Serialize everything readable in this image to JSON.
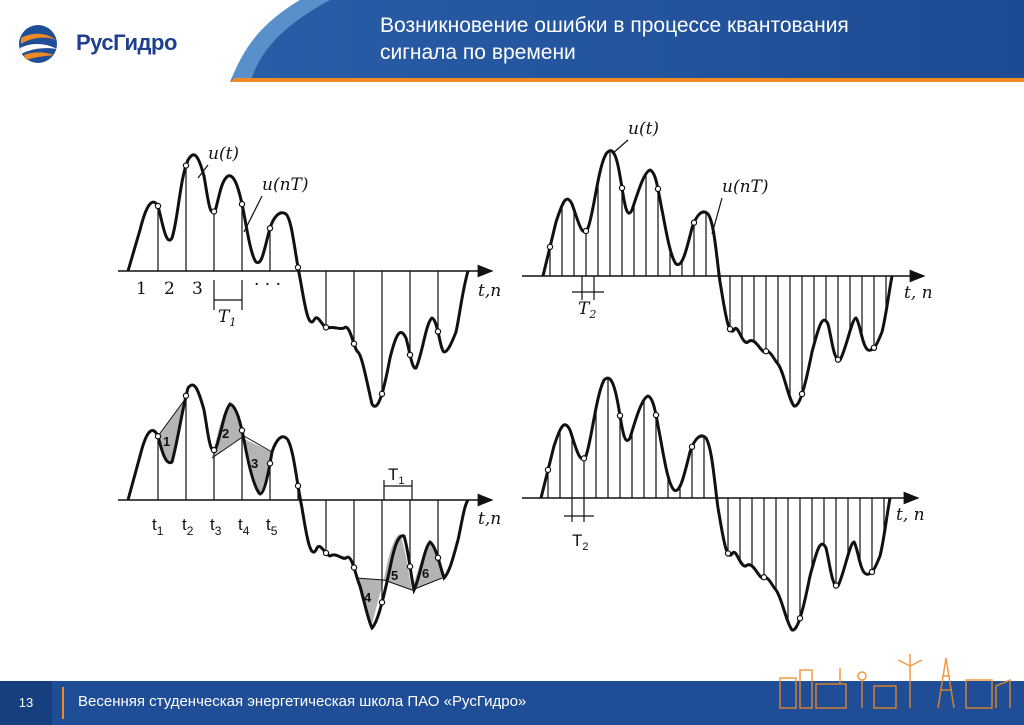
{
  "header": {
    "logo_text": "РусГидро",
    "title_line1": "Возникновение ошибки в процессе квантования",
    "title_line2": "сигнала по времени",
    "colors": {
      "blue_dark": "#1f4e96",
      "blue_light": "#4f8fd0",
      "orange": "#f08a24"
    }
  },
  "panels": {
    "top_left": {
      "curve_label": "u(t)",
      "sample_label": "u(nT)",
      "axis_label": "t,n",
      "period_label": "T",
      "period_sub": "1",
      "index_labels": [
        "1",
        "2",
        "3"
      ],
      "ellipsis": "· · ·"
    },
    "top_right": {
      "curve_label": "u(t)",
      "sample_label": "u(nT)",
      "axis_label": "t, n",
      "period_label": "T",
      "period_sub": "2"
    },
    "bottom_left": {
      "axis_label": "t,n",
      "period_label": "T",
      "period_sub": "1",
      "time_labels": [
        {
          "t": "t",
          "sub": "1"
        },
        {
          "t": "t",
          "sub": "2"
        },
        {
          "t": "t",
          "sub": "3"
        },
        {
          "t": "t",
          "sub": "4"
        },
        {
          "t": "t",
          "sub": "5"
        }
      ],
      "error_labels": [
        "1",
        "2",
        "3",
        "4",
        "5",
        "6"
      ]
    },
    "bottom_right": {
      "axis_label": "t, n",
      "period_label": "T",
      "period_sub": "2"
    }
  },
  "footer": {
    "page_number": "13",
    "text": "Весенняя студенческая энергетическая школа ПАО «РусГидро»"
  }
}
